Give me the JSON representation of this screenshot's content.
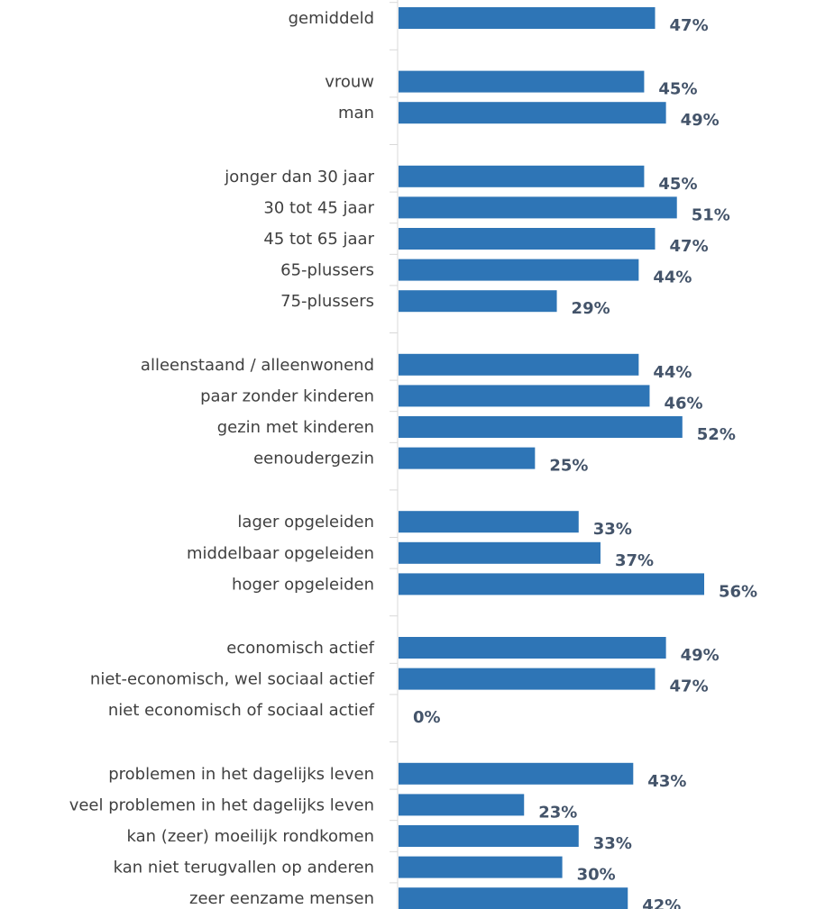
{
  "chart_data": {
    "type": "bar",
    "orientation": "horizontal",
    "title": "",
    "xlabel": "",
    "ylabel": "",
    "xlim": [
      0,
      56
    ],
    "value_suffix": "%",
    "bar_color": "#2e75b6",
    "label_color": "#44546a",
    "grid": false,
    "legend": "none",
    "groups": [
      {
        "items": [
          {
            "label": "gemiddeld",
            "value": 47
          }
        ]
      },
      {
        "items": [
          {
            "label": "vrouw",
            "value": 45
          },
          {
            "label": "man",
            "value": 49
          }
        ]
      },
      {
        "items": [
          {
            "label": "jonger dan 30 jaar",
            "value": 45
          },
          {
            "label": "30 tot 45 jaar",
            "value": 51
          },
          {
            "label": "45 tot 65 jaar",
            "value": 47
          },
          {
            "label": "65-plussers",
            "value": 44
          },
          {
            "label": "75-plussers",
            "value": 29
          }
        ]
      },
      {
        "items": [
          {
            "label": "alleenstaand / alleenwonend",
            "value": 44
          },
          {
            "label": "paar zonder kinderen",
            "value": 46
          },
          {
            "label": "gezin met kinderen",
            "value": 52
          },
          {
            "label": "eenoudergezin",
            "value": 25
          }
        ]
      },
      {
        "items": [
          {
            "label": "lager opgeleiden",
            "value": 33
          },
          {
            "label": "middelbaar opgeleiden",
            "value": 37
          },
          {
            "label": "hoger opgeleiden",
            "value": 56
          }
        ]
      },
      {
        "items": [
          {
            "label": "economisch actief",
            "value": 49
          },
          {
            "label": "niet-economisch, wel sociaal actief",
            "value": 47
          },
          {
            "label": "niet economisch of sociaal actief",
            "value": 0
          }
        ]
      },
      {
        "items": [
          {
            "label": "problemen in het dagelijks leven",
            "value": 43
          },
          {
            "label": "veel problemen in het dagelijks leven",
            "value": 23
          },
          {
            "label": "kan (zeer) moeilijk rondkomen",
            "value": 33
          },
          {
            "label": "kan niet terugvallen op anderen",
            "value": 30
          },
          {
            "label": "zeer eenzame mensen",
            "value": 42
          }
        ]
      }
    ]
  }
}
